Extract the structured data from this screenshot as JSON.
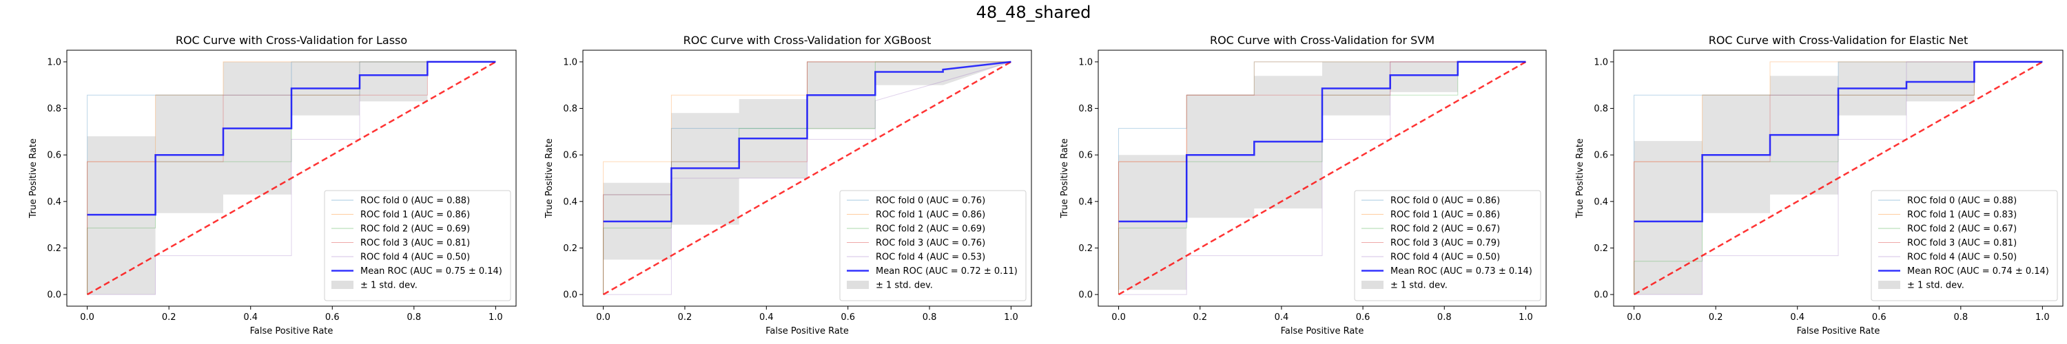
{
  "figure_title": "48_48_shared",
  "colors": {
    "folds": [
      "#1f77b4",
      "#ff7f0e",
      "#2ca02c",
      "#d62728",
      "#9467bd"
    ],
    "mean": "#0000ff",
    "chance": "#ff0000",
    "band": "#b0b0b0"
  },
  "chart_data": [
    {
      "type": "line",
      "title": "ROC Curve with Cross-Validation for Lasso",
      "xlabel": "False Positive Rate",
      "ylabel": "True Positive Rate",
      "xlim": [
        -0.05,
        1.05
      ],
      "ylim": [
        -0.05,
        1.05
      ],
      "xticks": [
        "0.0",
        "0.2",
        "0.4",
        "0.6",
        "0.8",
        "1.0"
      ],
      "yticks": [
        "0.0",
        "0.2",
        "0.4",
        "0.6",
        "0.8",
        "1.0"
      ],
      "legend_position": "lower-right",
      "series": [
        {
          "name": "ROC fold 0 (AUC = 0.88)",
          "x": [
            0,
            0,
            0.167,
            0.167,
            0.5,
            0.5,
            1
          ],
          "y": [
            0,
            0.857,
            0.857,
            0.857,
            0.857,
            1,
            1
          ]
        },
        {
          "name": "ROC fold 1 (AUC = 0.86)",
          "x": [
            0,
            0,
            0.167,
            0.167,
            0.333,
            0.333,
            1
          ],
          "y": [
            0,
            0.571,
            0.571,
            0.857,
            0.857,
            1,
            1
          ]
        },
        {
          "name": "ROC fold 2 (AUC = 0.69)",
          "x": [
            0,
            0,
            0.167,
            0.167,
            0.5,
            0.5,
            0.667,
            0.667,
            1
          ],
          "y": [
            0,
            0.286,
            0.286,
            0.571,
            0.571,
            0.857,
            0.857,
            1,
            1
          ]
        },
        {
          "name": "ROC fold 3 (AUC = 0.81)",
          "x": [
            0,
            0,
            0.167,
            0.167,
            0.333,
            0.333,
            0.833,
            0.833,
            1
          ],
          "y": [
            0,
            0.571,
            0.571,
            0.571,
            0.571,
            0.857,
            0.857,
            1,
            1
          ]
        },
        {
          "name": "ROC fold 4 (AUC = 0.50)",
          "x": [
            0,
            0,
            0.167,
            0.167,
            0.5,
            0.5,
            0.667,
            0.667,
            1
          ],
          "y": [
            0,
            0,
            0,
            0.167,
            0.167,
            0.667,
            0.667,
            1,
            1
          ]
        }
      ],
      "mean": {
        "name": "Mean ROC (AUC = 0.75 ± 0.14)",
        "x": [
          0,
          0.167,
          0.167,
          0.333,
          0.333,
          0.5,
          0.5,
          0.667,
          0.667,
          0.833,
          0.833,
          1
        ],
        "y": [
          0.343,
          0.343,
          0.6,
          0.6,
          0.714,
          0.714,
          0.886,
          0.886,
          0.943,
          0.943,
          1,
          1
        ]
      },
      "band": {
        "name": "± 1 std. dev.",
        "x": [
          0,
          0.167,
          0.167,
          0.333,
          0.333,
          0.5,
          0.5,
          0.667,
          0.667,
          0.833,
          0.833,
          1
        ],
        "lower": [
          0,
          0,
          0.35,
          0.35,
          0.43,
          0.43,
          0.77,
          0.77,
          0.83,
          0.83,
          1,
          1
        ],
        "upper": [
          0.68,
          0.68,
          0.86,
          0.86,
          1,
          1,
          1,
          1,
          1,
          1,
          1,
          1
        ]
      }
    },
    {
      "type": "line",
      "title": "ROC Curve with Cross-Validation for XGBoost",
      "xlabel": "False Positive Rate",
      "ylabel": "True Positive Rate",
      "xlim": [
        -0.05,
        1.05
      ],
      "ylim": [
        -0.05,
        1.05
      ],
      "xticks": [
        "0.0",
        "0.2",
        "0.4",
        "0.6",
        "0.8",
        "1.0"
      ],
      "yticks": [
        "0.0",
        "0.2",
        "0.4",
        "0.6",
        "0.8",
        "1.0"
      ],
      "legend_position": "lower-right",
      "series": [
        {
          "name": "ROC fold 0 (AUC = 0.76)",
          "x": [
            0,
            0,
            0.167,
            0.167,
            0.5,
            0.5,
            1
          ],
          "y": [
            0,
            0.429,
            0.429,
            0.714,
            0.714,
            1,
            1
          ]
        },
        {
          "name": "ROC fold 1 (AUC = 0.86)",
          "x": [
            0,
            0,
            0.167,
            0.167,
            0.5,
            0.5,
            1
          ],
          "y": [
            0,
            0.571,
            0.571,
            0.857,
            0.857,
            1,
            1
          ]
        },
        {
          "name": "ROC fold 2 (AUC = 0.69)",
          "x": [
            0,
            0,
            0.167,
            0.167,
            0.333,
            0.333,
            0.667,
            0.667,
            1
          ],
          "y": [
            0,
            0.286,
            0.286,
            0.571,
            0.571,
            0.714,
            0.714,
            1,
            1
          ]
        },
        {
          "name": "ROC fold 3 (AUC = 0.76)",
          "x": [
            0,
            0,
            0.167,
            0.167,
            0.5,
            0.5,
            1
          ],
          "y": [
            0,
            0.429,
            0.429,
            0.571,
            0.571,
            1,
            1
          ]
        },
        {
          "name": "ROC fold 4 (AUC = 0.53)",
          "x": [
            0,
            0,
            0.167,
            0.167,
            0.5,
            0.5,
            0.667,
            0.667,
            1
          ],
          "y": [
            0,
            0,
            0,
            0.5,
            0.5,
            0.667,
            0.667,
            0.833,
            1
          ]
        }
      ],
      "mean": {
        "name": "Mean ROC (AUC = 0.72 ± 0.11)",
        "x": [
          0,
          0.167,
          0.167,
          0.333,
          0.333,
          0.5,
          0.5,
          0.667,
          0.667,
          0.833,
          0.833,
          1
        ],
        "y": [
          0.314,
          0.314,
          0.543,
          0.543,
          0.671,
          0.671,
          0.857,
          0.857,
          0.957,
          0.957,
          0.967,
          1
        ]
      },
      "band": {
        "name": "± 1 std. dev.",
        "x": [
          0,
          0.167,
          0.167,
          0.333,
          0.333,
          0.5,
          0.5,
          0.667,
          0.667,
          0.833,
          0.833,
          1
        ],
        "lower": [
          0.15,
          0.15,
          0.3,
          0.3,
          0.5,
          0.5,
          0.71,
          0.71,
          0.9,
          0.9,
          0.9,
          1
        ],
        "upper": [
          0.48,
          0.48,
          0.78,
          0.78,
          0.84,
          0.84,
          1,
          1,
          1,
          1,
          1,
          1
        ]
      }
    },
    {
      "type": "line",
      "title": "ROC Curve with Cross-Validation for SVM",
      "xlabel": "False Positive Rate",
      "ylabel": "True Positive Rate",
      "xlim": [
        -0.05,
        1.05
      ],
      "ylim": [
        -0.05,
        1.05
      ],
      "xticks": [
        "0.0",
        "0.2",
        "0.4",
        "0.6",
        "0.8",
        "1.0"
      ],
      "yticks": [
        "0.0",
        "0.2",
        "0.4",
        "0.6",
        "0.8",
        "1.0"
      ],
      "legend_position": "lower-right",
      "series": [
        {
          "name": "ROC fold 0 (AUC = 0.86)",
          "x": [
            0,
            0,
            0.167,
            0.167,
            0.333,
            0.333,
            1
          ],
          "y": [
            0,
            0.714,
            0.714,
            0.857,
            0.857,
            1,
            1
          ]
        },
        {
          "name": "ROC fold 1 (AUC = 0.86)",
          "x": [
            0,
            0,
            0.167,
            0.167,
            0.333,
            0.333,
            1
          ],
          "y": [
            0,
            0.571,
            0.571,
            0.857,
            0.857,
            1,
            1
          ]
        },
        {
          "name": "ROC fold 2 (AUC = 0.67)",
          "x": [
            0,
            0,
            0.167,
            0.167,
            0.5,
            0.5,
            0.833,
            0.833,
            1
          ],
          "y": [
            0,
            0.286,
            0.286,
            0.571,
            0.571,
            0.857,
            0.857,
            1,
            1
          ]
        },
        {
          "name": "ROC fold 3 (AUC = 0.79)",
          "x": [
            0,
            0,
            0.167,
            0.167,
            0.333,
            0.333,
            0.667,
            0.667,
            1
          ],
          "y": [
            0,
            0.571,
            0.571,
            0.857,
            0.857,
            0.857,
            0.857,
            1,
            1
          ]
        },
        {
          "name": "ROC fold 4 (AUC = 0.50)",
          "x": [
            0,
            0,
            0.167,
            0.167,
            0.5,
            0.5,
            0.667,
            0.667,
            1
          ],
          "y": [
            0,
            0,
            0,
            0.167,
            0.167,
            0.667,
            0.667,
            1,
            1
          ]
        }
      ],
      "mean": {
        "name": "Mean ROC (AUC = 0.73 ± 0.14)",
        "x": [
          0,
          0.167,
          0.167,
          0.333,
          0.333,
          0.5,
          0.5,
          0.667,
          0.667,
          0.833,
          0.833,
          1
        ],
        "y": [
          0.314,
          0.314,
          0.6,
          0.6,
          0.657,
          0.657,
          0.886,
          0.886,
          0.943,
          0.943,
          1,
          1
        ]
      },
      "band": {
        "name": "± 1 std. dev.",
        "x": [
          0,
          0.167,
          0.167,
          0.333,
          0.333,
          0.5,
          0.5,
          0.667,
          0.667,
          0.833,
          0.833,
          1
        ],
        "lower": [
          0.02,
          0.02,
          0.33,
          0.33,
          0.37,
          0.37,
          0.77,
          0.77,
          0.87,
          0.87,
          1,
          1
        ],
        "upper": [
          0.6,
          0.6,
          0.86,
          0.86,
          0.94,
          0.94,
          1,
          1,
          1,
          1,
          1,
          1
        ]
      }
    },
    {
      "type": "line",
      "title": "ROC Curve with Cross-Validation for Elastic Net",
      "xlabel": "False Positive Rate",
      "ylabel": "True Positive Rate",
      "xlim": [
        -0.05,
        1.05
      ],
      "ylim": [
        -0.05,
        1.05
      ],
      "xticks": [
        "0.0",
        "0.2",
        "0.4",
        "0.6",
        "0.8",
        "1.0"
      ],
      "yticks": [
        "0.0",
        "0.2",
        "0.4",
        "0.6",
        "0.8",
        "1.0"
      ],
      "legend_position": "lower-right",
      "series": [
        {
          "name": "ROC fold 0 (AUC = 0.88)",
          "x": [
            0,
            0,
            0.167,
            0.167,
            0.5,
            0.5,
            1
          ],
          "y": [
            0,
            0.857,
            0.857,
            0.857,
            0.857,
            1,
            1
          ]
        },
        {
          "name": "ROC fold 1 (AUC = 0.83)",
          "x": [
            0,
            0,
            0.167,
            0.167,
            0.333,
            0.333,
            1
          ],
          "y": [
            0,
            0.571,
            0.571,
            0.857,
            0.857,
            1,
            1
          ]
        },
        {
          "name": "ROC fold 2 (AUC = 0.67)",
          "x": [
            0,
            0,
            0.167,
            0.167,
            0.5,
            0.5,
            0.833,
            0.833,
            1
          ],
          "y": [
            0,
            0.143,
            0.143,
            0.571,
            0.571,
            0.857,
            0.857,
            1,
            1
          ]
        },
        {
          "name": "ROC fold 3 (AUC = 0.81)",
          "x": [
            0,
            0,
            0.167,
            0.167,
            0.333,
            0.333,
            0.833,
            0.833,
            1
          ],
          "y": [
            0,
            0.571,
            0.571,
            0.571,
            0.571,
            0.857,
            0.857,
            1,
            1
          ]
        },
        {
          "name": "ROC fold 4 (AUC = 0.50)",
          "x": [
            0,
            0,
            0.167,
            0.167,
            0.5,
            0.5,
            0.667,
            0.667,
            1
          ],
          "y": [
            0,
            0,
            0,
            0.167,
            0.167,
            0.667,
            0.667,
            1,
            1
          ]
        }
      ],
      "mean": {
        "name": "Mean ROC (AUC = 0.74 ± 0.14)",
        "x": [
          0,
          0.167,
          0.167,
          0.333,
          0.333,
          0.5,
          0.5,
          0.667,
          0.667,
          0.833,
          0.833,
          1
        ],
        "y": [
          0.314,
          0.314,
          0.6,
          0.6,
          0.686,
          0.686,
          0.886,
          0.886,
          0.914,
          0.914,
          1,
          1
        ]
      },
      "band": {
        "name": "± 1 std. dev.",
        "x": [
          0,
          0.167,
          0.167,
          0.333,
          0.333,
          0.5,
          0.5,
          0.667,
          0.667,
          0.833,
          0.833,
          1
        ],
        "lower": [
          0,
          0,
          0.35,
          0.35,
          0.43,
          0.43,
          0.77,
          0.77,
          0.83,
          0.83,
          1,
          1
        ],
        "upper": [
          0.66,
          0.66,
          0.86,
          0.86,
          0.94,
          0.94,
          1,
          1,
          1,
          1,
          1,
          1
        ]
      }
    }
  ]
}
